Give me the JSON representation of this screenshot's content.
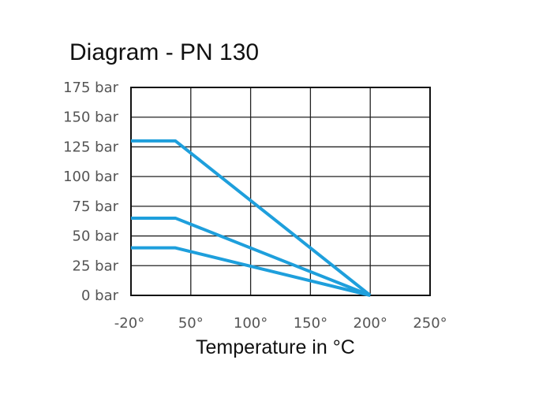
{
  "chart_data": {
    "type": "line",
    "title": "Diagram - PN 130",
    "xlabel": "Temperature in °C",
    "ylabel": "",
    "x_ticks": [
      "-20°",
      "50°",
      "100°",
      "150°",
      "200°",
      "250°"
    ],
    "x_tick_values": [
      -20,
      50,
      100,
      150,
      200,
      250
    ],
    "y_ticks": [
      "0 bar",
      "25 bar",
      "50 bar",
      "75 bar",
      "100 bar",
      "125 bar",
      "150 bar",
      "175 bar"
    ],
    "y_tick_values": [
      0,
      25,
      50,
      75,
      100,
      125,
      150,
      175
    ],
    "xlim": [
      -20,
      250
    ],
    "ylim": [
      0,
      175
    ],
    "grid": true,
    "line_color": "#1e9fdc",
    "series": [
      {
        "x": [
          -20,
          32,
          200
        ],
        "y": [
          130,
          130,
          0
        ]
      },
      {
        "x": [
          -20,
          32,
          200
        ],
        "y": [
          65,
          65,
          0
        ]
      },
      {
        "x": [
          -20,
          32,
          200
        ],
        "y": [
          40,
          40,
          0
        ]
      }
    ]
  }
}
